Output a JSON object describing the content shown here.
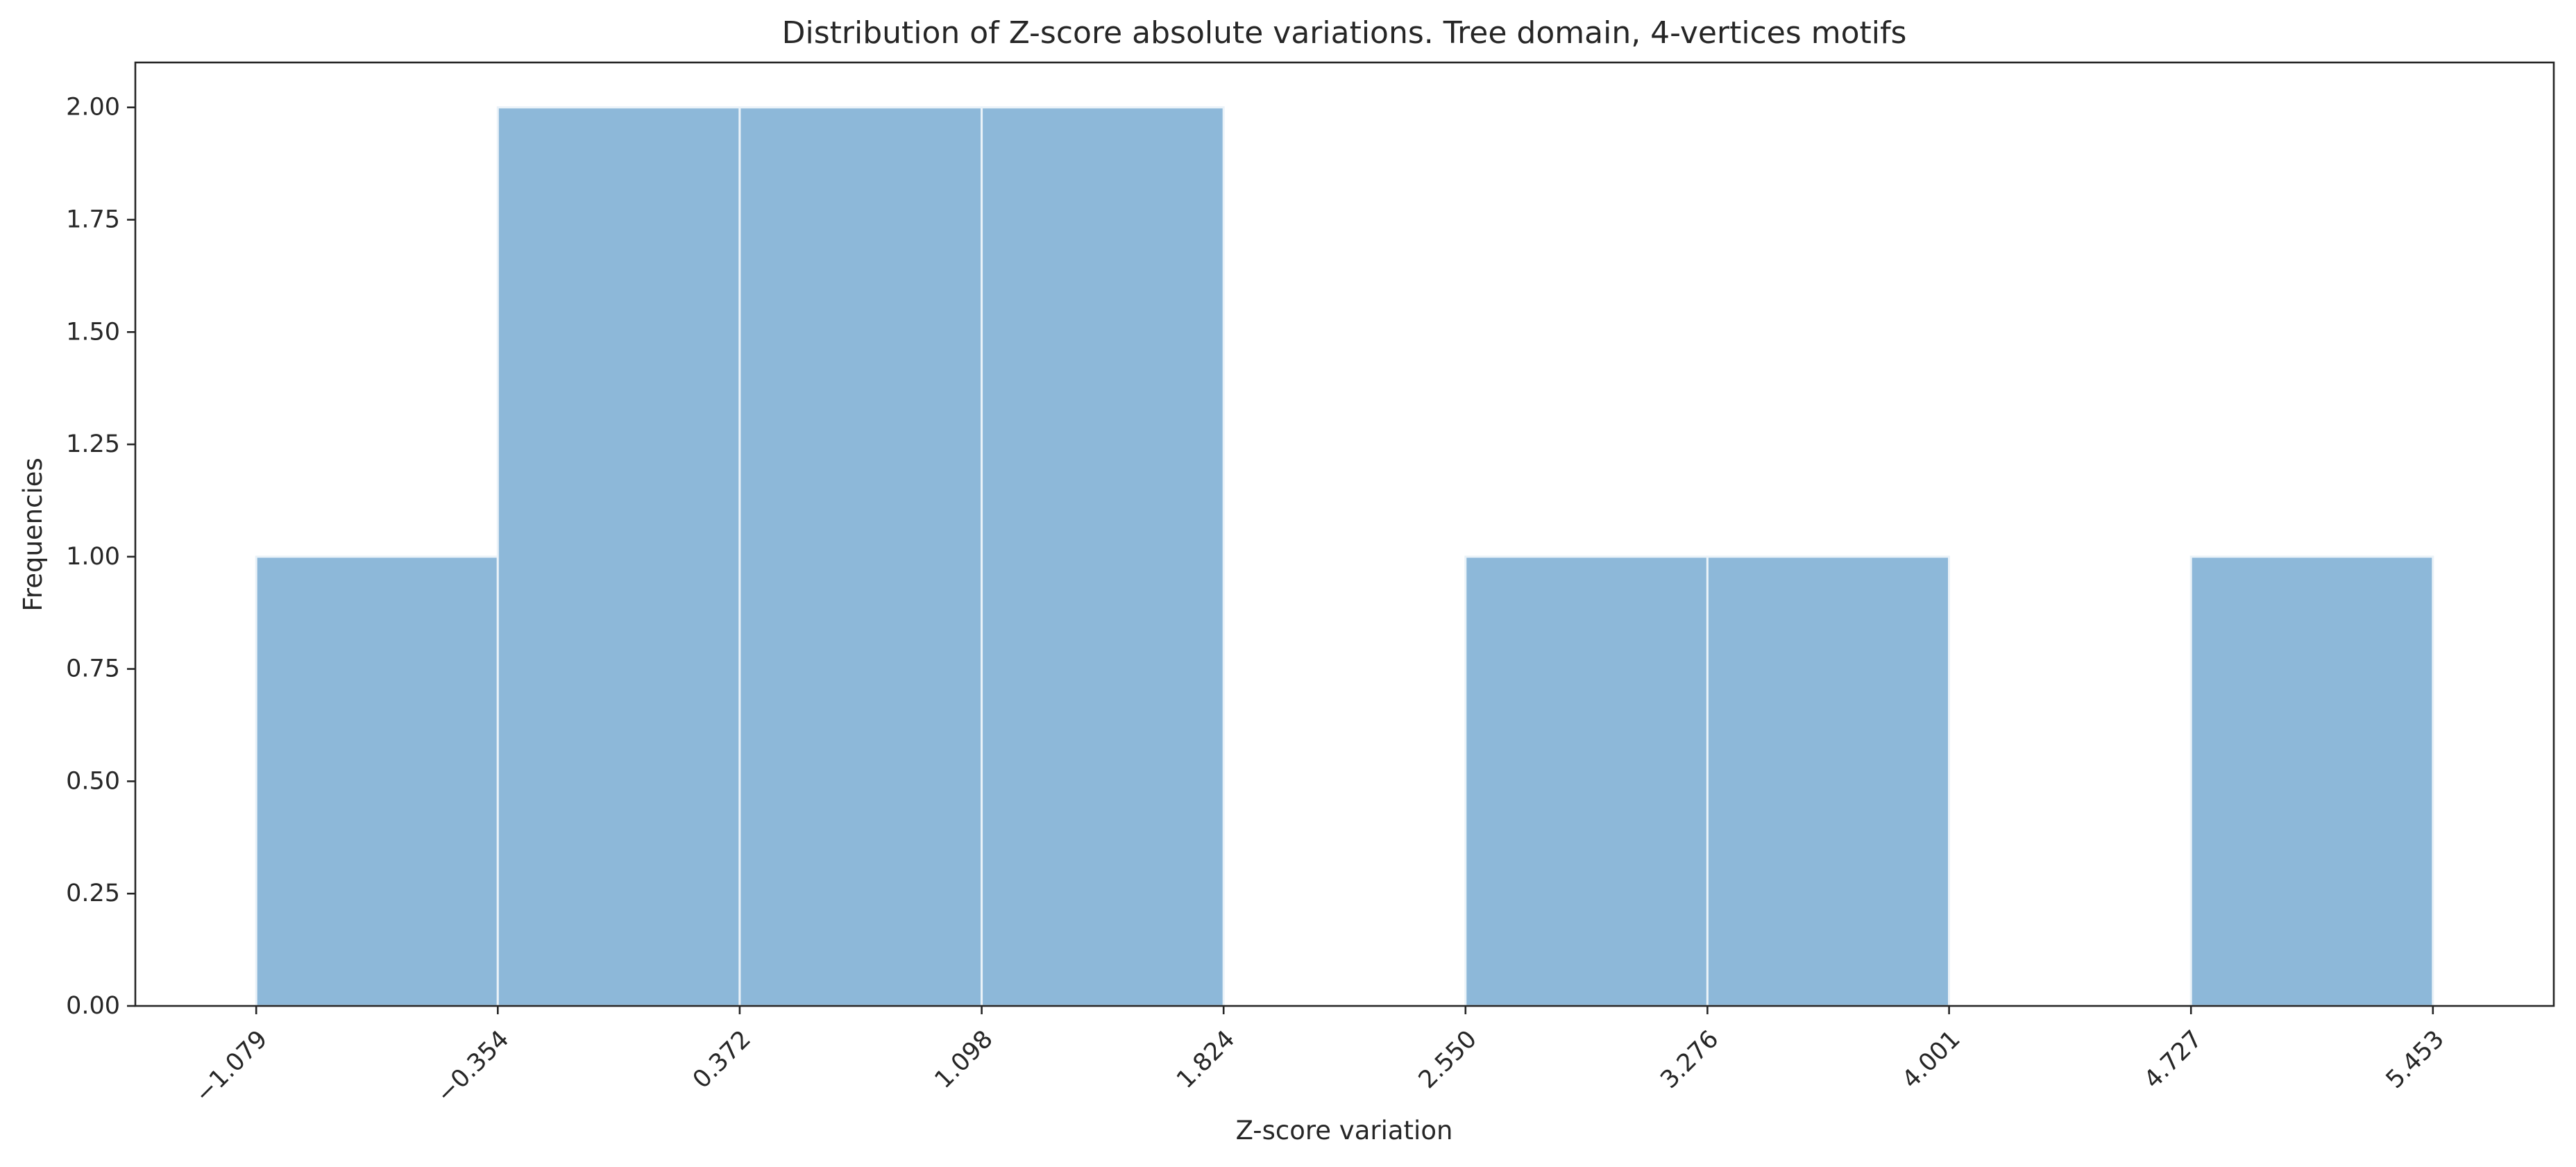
{
  "chart_data": {
    "type": "bar",
    "title": "Distribution of Z-score absolute variations. Tree domain, 4-vertices motifs",
    "xlabel": "Z-score variation",
    "ylabel": "Frequencies",
    "bin_edges": [
      -1.079,
      -0.354,
      0.372,
      1.098,
      1.824,
      2.55,
      3.276,
      4.001,
      4.727,
      5.453
    ],
    "values": [
      1,
      2,
      2,
      2,
      0,
      1,
      1,
      0,
      1
    ],
    "x_tick_labels": [
      "−1.079",
      "−0.354",
      "0.372",
      "1.098",
      "1.824",
      "2.550",
      "3.276",
      "4.001",
      "4.727",
      "5.453"
    ],
    "y_ticks": [
      0,
      0.25,
      0.5,
      0.75,
      1.0,
      1.25,
      1.5,
      1.75,
      2.0
    ],
    "y_tick_labels": [
      "0.00",
      "0.25",
      "0.50",
      "0.75",
      "1.00",
      "1.25",
      "1.50",
      "1.75",
      "2.00"
    ],
    "xlim": [
      -1.4417,
      5.8157
    ],
    "ylim": [
      0,
      2.1
    ],
    "grid": false,
    "bar_color": "#8db8d9",
    "bar_edge_color": "#eaf2f8",
    "axis_color": "#262626"
  }
}
